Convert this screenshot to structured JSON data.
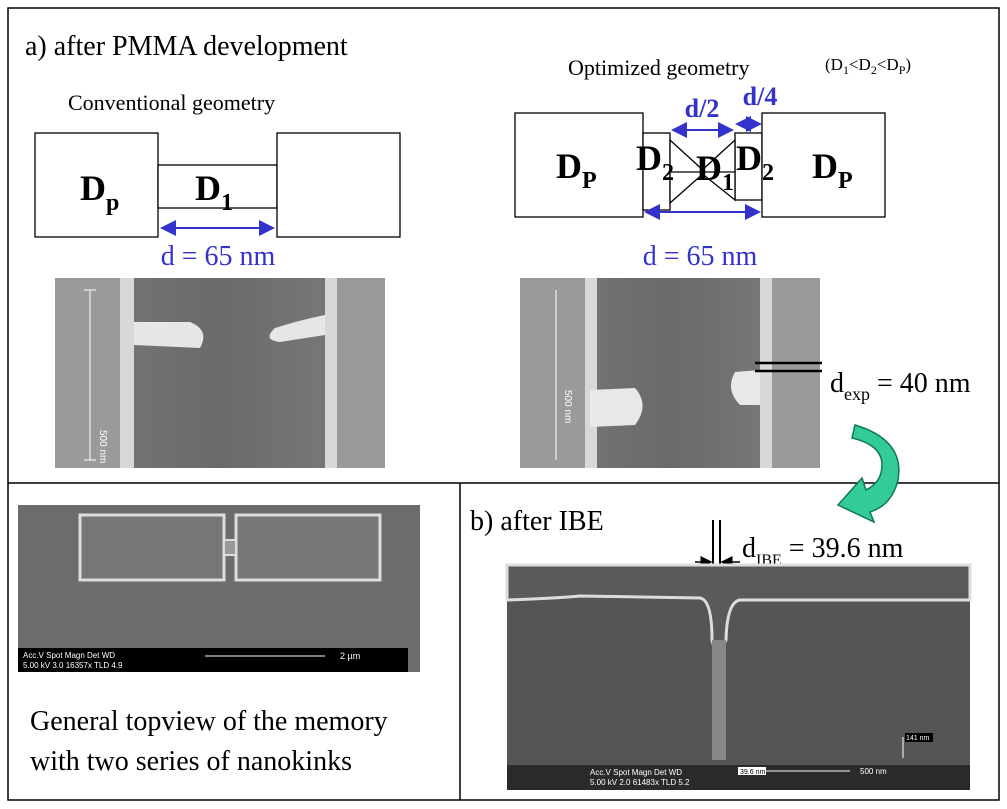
{
  "panel_a": {
    "title": "a) after PMMA development",
    "conventional": {
      "title": "Conventional geometry",
      "pad_label": "D",
      "pad_sub": "p",
      "bridge_label": "D",
      "bridge_sub": "1",
      "dimension": "d = 65 nm",
      "scale_label": "500 nm"
    },
    "optimized": {
      "title": "Optimized geometry",
      "condition": [
        "(D",
        "1",
        "<D",
        "2",
        "<D",
        "P",
        ")"
      ],
      "pad_label": "D",
      "pad_sub": "P",
      "d2_label": "D",
      "d2_sub": "2",
      "d1_label": "D",
      "d1_sub": "1",
      "half": "d/2",
      "quarter": "d/4",
      "dimension": "d = 65 nm",
      "scale_label": "500 nm",
      "exp_label": "d",
      "exp_sub": "exp",
      "exp_value": " = 40 nm"
    }
  },
  "topview": {
    "info_header": "Acc.V  Spot Magn    Det  WD",
    "info_values": "5.00 kV 3.0  16357x  TLD  4.9",
    "scale_label": "2 µm",
    "caption": [
      "General topview of the memory",
      "with two series of nanokinks"
    ]
  },
  "panel_b": {
    "title": "b) after IBE",
    "gap_label": "d",
    "gap_sub": "IBE",
    "gap_value": " = 39.6 nm",
    "info_header": "Acc.V  Spot Magn    Det  WD",
    "info_values": "5.00 kV 2.0  61483x  TLD  5.2",
    "inner_scale": "39.6 nm",
    "scale_label": "500 nm",
    "height_label": "141 nm"
  }
}
